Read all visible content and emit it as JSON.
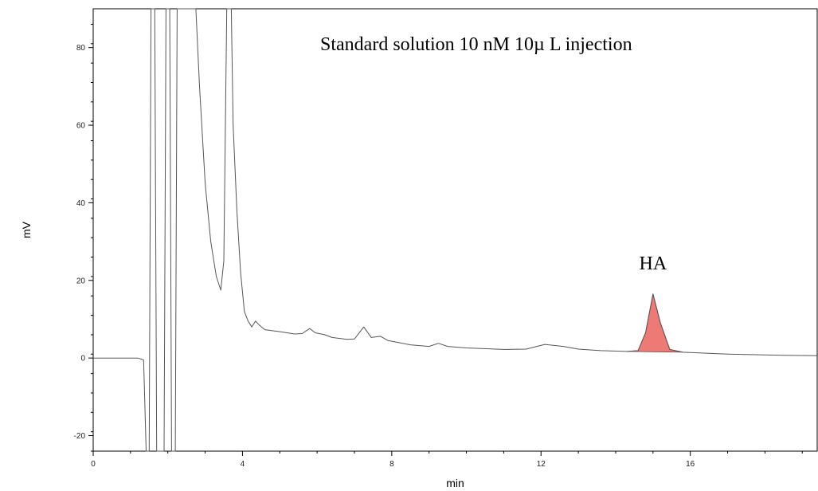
{
  "chart_data": {
    "type": "line",
    "title": "",
    "xlabel": "min",
    "ylabel": "mV",
    "xlim": [
      0,
      19.4
    ],
    "ylim": [
      -24,
      90
    ],
    "x_ticks": [
      0,
      4,
      8,
      12,
      16
    ],
    "y_ticks": [
      -20,
      0,
      20,
      40,
      60,
      80
    ],
    "grid": false,
    "series": [
      {
        "name": "",
        "color": "#555555",
        "points": [
          [
            0,
            0
          ],
          [
            1.2,
            0
          ],
          [
            1.35,
            -0.5
          ],
          [
            1.42,
            -24
          ],
          [
            1.5,
            -24
          ],
          [
            1.55,
            90
          ],
          [
            1.65,
            90
          ],
          [
            1.7,
            -24
          ],
          [
            1.9,
            -24
          ],
          [
            1.95,
            90
          ],
          [
            2.05,
            90
          ],
          [
            2.1,
            -24
          ],
          [
            2.2,
            -24
          ],
          [
            2.25,
            90
          ],
          [
            2.75,
            90
          ],
          [
            2.85,
            70
          ],
          [
            3.0,
            45
          ],
          [
            3.15,
            30
          ],
          [
            3.3,
            21
          ],
          [
            3.42,
            17.5
          ],
          [
            3.5,
            25
          ],
          [
            3.58,
            90
          ],
          [
            3.7,
            90
          ],
          [
            3.75,
            60
          ],
          [
            3.85,
            38
          ],
          [
            3.95,
            22
          ],
          [
            4.05,
            12
          ],
          [
            4.15,
            9.5
          ],
          [
            4.25,
            8
          ],
          [
            4.35,
            9.5
          ],
          [
            4.45,
            8.5
          ],
          [
            4.6,
            7.3
          ],
          [
            5.0,
            6.8
          ],
          [
            5.4,
            6.2
          ],
          [
            5.6,
            6.3
          ],
          [
            5.8,
            7.6
          ],
          [
            5.95,
            6.5
          ],
          [
            6.2,
            6.0
          ],
          [
            6.4,
            5.3
          ],
          [
            6.8,
            4.8
          ],
          [
            7.0,
            4.9
          ],
          [
            7.25,
            8.0
          ],
          [
            7.45,
            5.3
          ],
          [
            7.7,
            5.6
          ],
          [
            7.9,
            4.5
          ],
          [
            8.5,
            3.4
          ],
          [
            9.0,
            3.0
          ],
          [
            9.25,
            3.8
          ],
          [
            9.5,
            3.0
          ],
          [
            10.0,
            2.6
          ],
          [
            11.0,
            2.2
          ],
          [
            11.6,
            2.3
          ],
          [
            12.1,
            3.5
          ],
          [
            12.6,
            3.0
          ],
          [
            13.0,
            2.3
          ],
          [
            13.6,
            1.9
          ],
          [
            14.3,
            1.7
          ],
          [
            14.6,
            1.9
          ],
          [
            14.8,
            6.5
          ],
          [
            15.0,
            16.5
          ],
          [
            15.2,
            9.0
          ],
          [
            15.45,
            2.2
          ],
          [
            15.8,
            1.5
          ],
          [
            17.0,
            1.0
          ],
          [
            18.5,
            0.7
          ],
          [
            19.4,
            0.6
          ]
        ]
      }
    ],
    "highlighted_peak": {
      "label": "HA",
      "color": "#ee7a76",
      "points": [
        [
          14.3,
          1.7
        ],
        [
          14.6,
          1.9
        ],
        [
          14.8,
          6.5
        ],
        [
          15.0,
          16.5
        ],
        [
          15.2,
          9.0
        ],
        [
          15.45,
          2.2
        ],
        [
          15.8,
          1.5
        ]
      ]
    },
    "annotations": {
      "description": "Standard solution 10 nM 10µ L injection",
      "peak_label": "HA"
    }
  }
}
